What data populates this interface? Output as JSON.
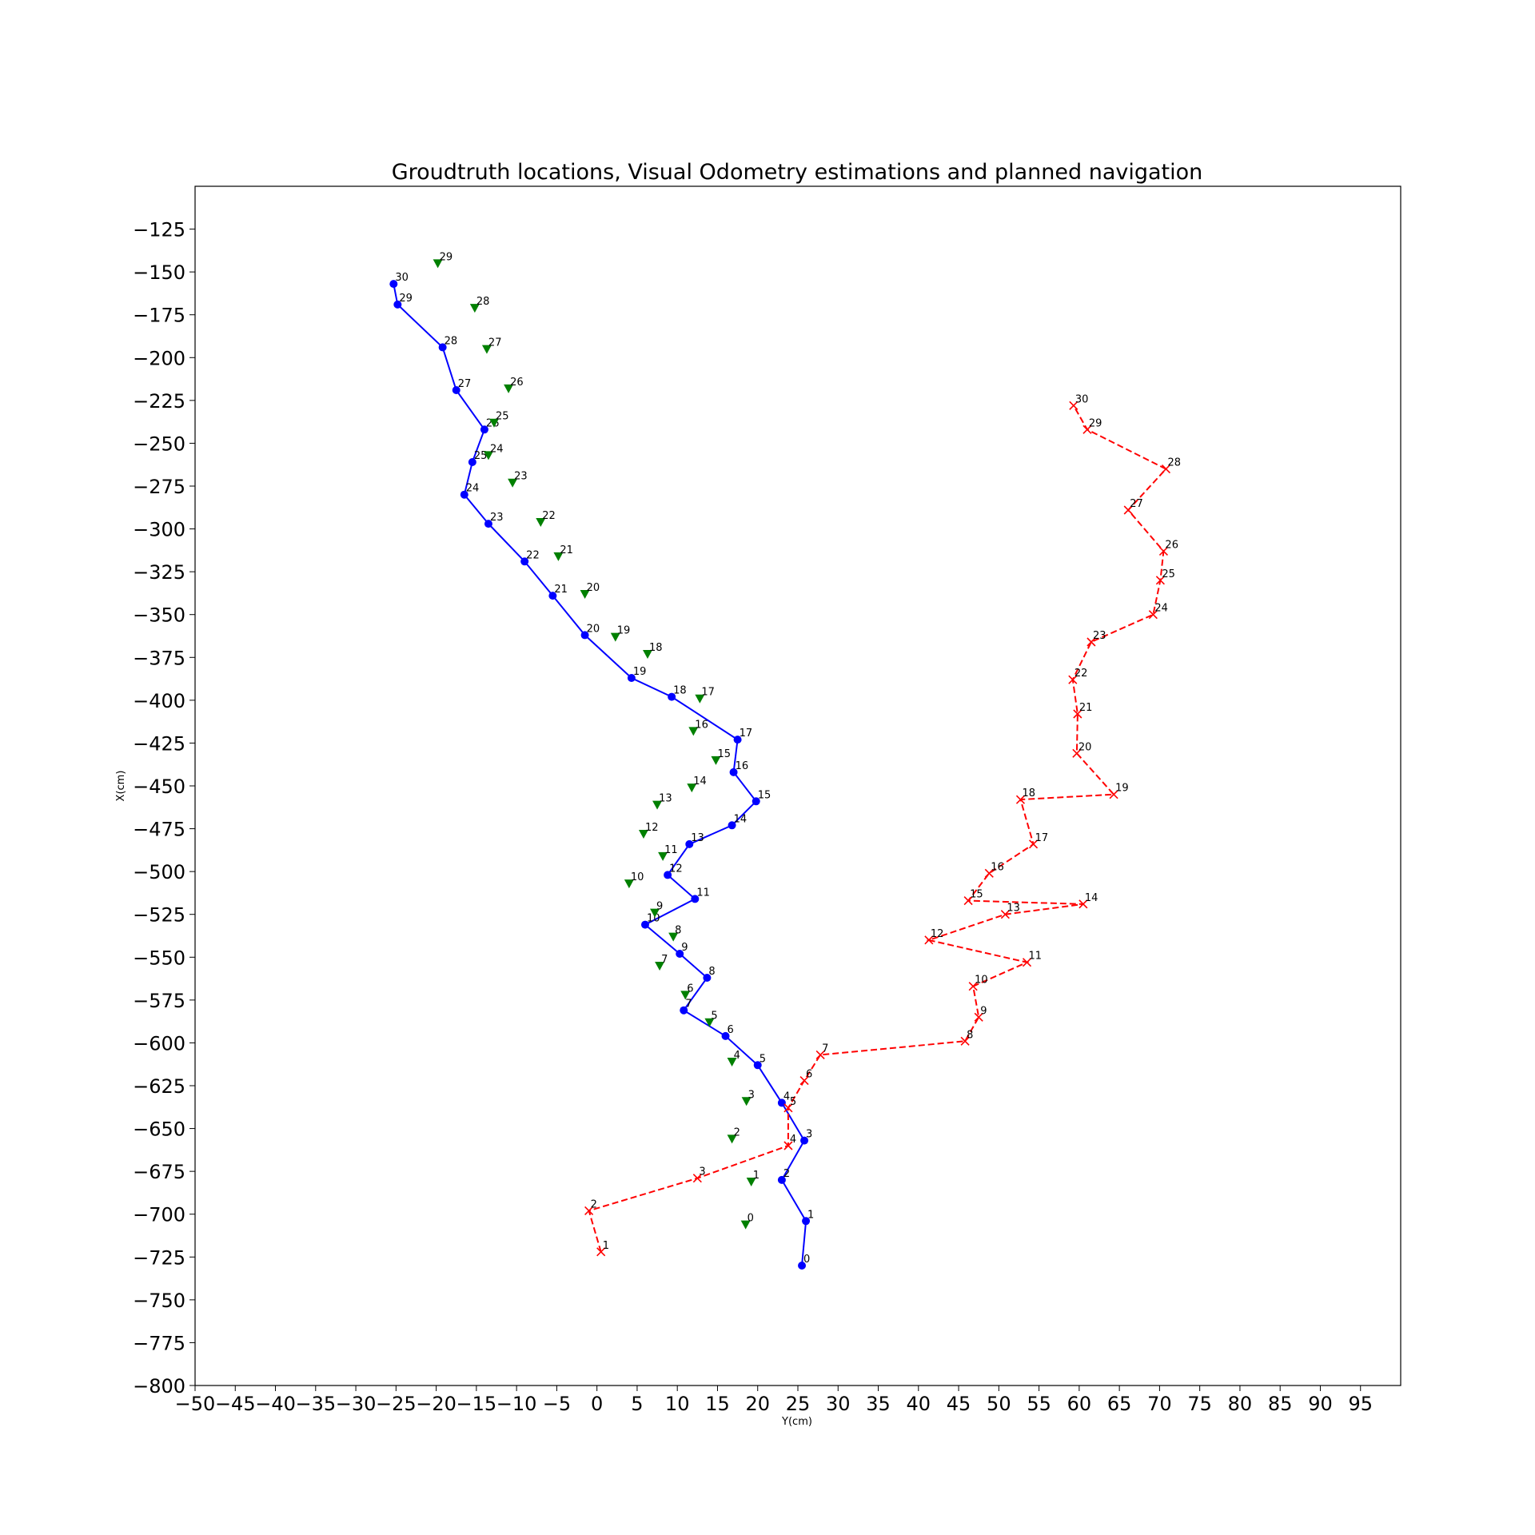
{
  "chart_data": {
    "type": "scatter",
    "title": "Groudtruth locations, Visual Odometry estimations and planned navigation",
    "xlabel": "Y(cm)",
    "ylabel": "X(cm)",
    "xlim": [
      -50,
      100
    ],
    "ylim": [
      -800,
      -100
    ],
    "xticks": [
      -50,
      -45,
      -40,
      -35,
      -30,
      -25,
      -20,
      -15,
      -10,
      -5,
      0,
      5,
      10,
      15,
      20,
      25,
      30,
      35,
      40,
      45,
      50,
      55,
      60,
      65,
      70,
      75,
      80,
      85,
      90,
      95
    ],
    "yticks": [
      -800,
      -775,
      -750,
      -725,
      -700,
      -675,
      -650,
      -625,
      -600,
      -575,
      -550,
      -525,
      -500,
      -475,
      -450,
      -425,
      -400,
      -375,
      -350,
      -325,
      -300,
      -275,
      -250,
      -225,
      -200,
      -175,
      -150,
      -125
    ],
    "grid": false,
    "series": [
      {
        "key": "blue",
        "color": "#0000ff",
        "marker": "circle",
        "line": "solid",
        "points": [
          {
            "label": "0",
            "x": 25.5,
            "y": -730
          },
          {
            "label": "1",
            "x": 26,
            "y": -704
          },
          {
            "label": "2",
            "x": 23,
            "y": -680
          },
          {
            "label": "3",
            "x": 25.8,
            "y": -657
          },
          {
            "label": "4",
            "x": 23,
            "y": -635
          },
          {
            "label": "5",
            "x": 20,
            "y": -613
          },
          {
            "label": "6",
            "x": 16,
            "y": -596
          },
          {
            "label": "7",
            "x": 10.8,
            "y": -581
          },
          {
            "label": "8",
            "x": 13.7,
            "y": -562
          },
          {
            "label": "9",
            "x": 10.3,
            "y": -548
          },
          {
            "label": "10",
            "x": 6,
            "y": -531
          },
          {
            "label": "11",
            "x": 12.2,
            "y": -516
          },
          {
            "label": "12",
            "x": 8.8,
            "y": -502
          },
          {
            "label": "13",
            "x": 11.5,
            "y": -484
          },
          {
            "label": "14",
            "x": 16.8,
            "y": -473
          },
          {
            "label": "15",
            "x": 19.8,
            "y": -459
          },
          {
            "label": "16",
            "x": 17,
            "y": -442
          },
          {
            "label": "17",
            "x": 17.5,
            "y": -423
          },
          {
            "label": "18",
            "x": 9.3,
            "y": -398
          },
          {
            "label": "19",
            "x": 4.3,
            "y": -387
          },
          {
            "label": "20",
            "x": -1.5,
            "y": -362
          },
          {
            "label": "21",
            "x": -5.5,
            "y": -339
          },
          {
            "label": "22",
            "x": -9,
            "y": -319
          },
          {
            "label": "23",
            "x": -13.5,
            "y": -297
          },
          {
            "label": "24",
            "x": -16.5,
            "y": -280
          },
          {
            "label": "25",
            "x": -15.5,
            "y": -261
          },
          {
            "label": "26",
            "x": -14,
            "y": -242
          },
          {
            "label": "27",
            "x": -17.5,
            "y": -219
          },
          {
            "label": "28",
            "x": -19.2,
            "y": -194
          },
          {
            "label": "29",
            "x": -24.8,
            "y": -169
          },
          {
            "label": "30",
            "x": -25.3,
            "y": -157
          }
        ]
      },
      {
        "key": "green",
        "color": "#008000",
        "marker": "triangle-down",
        "line": "none",
        "points": [
          {
            "label": "0",
            "x": 18.5,
            "y": -706
          },
          {
            "label": "1",
            "x": 19.2,
            "y": -681
          },
          {
            "label": "2",
            "x": 16.8,
            "y": -656
          },
          {
            "label": "3",
            "x": 18.6,
            "y": -634
          },
          {
            "label": "4",
            "x": 16.8,
            "y": -611
          },
          {
            "label": "5",
            "x": 14,
            "y": -588
          },
          {
            "label": "6",
            "x": 11,
            "y": -572
          },
          {
            "label": "7",
            "x": 7.8,
            "y": -555
          },
          {
            "label": "8",
            "x": 9.5,
            "y": -538
          },
          {
            "label": "9",
            "x": 7.2,
            "y": -524
          },
          {
            "label": "10",
            "x": 4,
            "y": -507
          },
          {
            "label": "11",
            "x": 8.2,
            "y": -491
          },
          {
            "label": "12",
            "x": 5.8,
            "y": -478
          },
          {
            "label": "13",
            "x": 7.5,
            "y": -461
          },
          {
            "label": "14",
            "x": 11.8,
            "y": -451
          },
          {
            "label": "15",
            "x": 14.8,
            "y": -435
          },
          {
            "label": "16",
            "x": 12,
            "y": -418
          },
          {
            "label": "17",
            "x": 12.8,
            "y": -399
          },
          {
            "label": "18",
            "x": 6.3,
            "y": -373
          },
          {
            "label": "19",
            "x": 2.3,
            "y": -363
          },
          {
            "label": "20",
            "x": -1.5,
            "y": -338
          },
          {
            "label": "21",
            "x": -4.8,
            "y": -316
          },
          {
            "label": "22",
            "x": -7,
            "y": -296
          },
          {
            "label": "23",
            "x": -10.5,
            "y": -273
          },
          {
            "label": "24",
            "x": -13.5,
            "y": -257
          },
          {
            "label": "25",
            "x": -12.8,
            "y": -238
          },
          {
            "label": "26",
            "x": -11,
            "y": -218
          },
          {
            "label": "27",
            "x": -13.7,
            "y": -195
          },
          {
            "label": "28",
            "x": -15.2,
            "y": -171
          },
          {
            "label": "29",
            "x": -19.8,
            "y": -145
          }
        ]
      },
      {
        "key": "red",
        "color": "#ff0000",
        "marker": "x",
        "line": "dashed",
        "points": [
          {
            "label": "1",
            "x": 0.5,
            "y": -722
          },
          {
            "label": "2",
            "x": -1,
            "y": -698
          },
          {
            "label": "3",
            "x": 12.5,
            "y": -679
          },
          {
            "label": "4",
            "x": 23.8,
            "y": -660
          },
          {
            "label": "5",
            "x": 23.8,
            "y": -638
          },
          {
            "label": "6",
            "x": 25.8,
            "y": -622
          },
          {
            "label": "7",
            "x": 27.8,
            "y": -607
          },
          {
            "label": "8",
            "x": 45.8,
            "y": -599
          },
          {
            "label": "9",
            "x": 47.5,
            "y": -585
          },
          {
            "label": "10",
            "x": 46.8,
            "y": -567
          },
          {
            "label": "11",
            "x": 53.5,
            "y": -553
          },
          {
            "label": "12",
            "x": 41.3,
            "y": -540
          },
          {
            "label": "13",
            "x": 50.8,
            "y": -525
          },
          {
            "label": "14",
            "x": 60.5,
            "y": -519
          },
          {
            "label": "15",
            "x": 46.2,
            "y": -517
          },
          {
            "label": "16",
            "x": 48.8,
            "y": -501
          },
          {
            "label": "17",
            "x": 54.3,
            "y": -484
          },
          {
            "label": "18",
            "x": 52.7,
            "y": -458
          },
          {
            "label": "19",
            "x": 64.3,
            "y": -455
          },
          {
            "label": "20",
            "x": 59.7,
            "y": -431
          },
          {
            "label": "21",
            "x": 59.8,
            "y": -408
          },
          {
            "label": "22",
            "x": 59.2,
            "y": -388
          },
          {
            "label": "23",
            "x": 61.5,
            "y": -366
          },
          {
            "label": "24",
            "x": 69.2,
            "y": -350
          },
          {
            "label": "25",
            "x": 70.1,
            "y": -330
          },
          {
            "label": "26",
            "x": 70.5,
            "y": -313
          },
          {
            "label": "27",
            "x": 66.1,
            "y": -289
          },
          {
            "label": "28",
            "x": 70.8,
            "y": -265
          },
          {
            "label": "29",
            "x": 61,
            "y": -242
          },
          {
            "label": "30",
            "x": 59.3,
            "y": -228
          }
        ]
      }
    ]
  }
}
